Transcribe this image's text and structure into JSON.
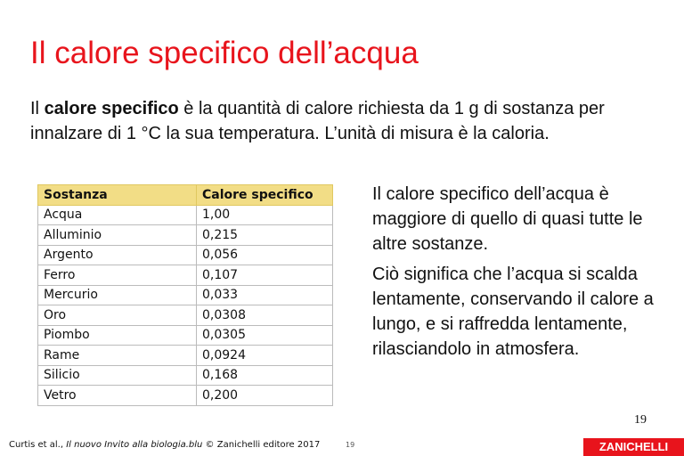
{
  "title": "Il calore specifico dell’acqua",
  "intro": {
    "before": "Il ",
    "bold": "calore specifico",
    "after": " è la quantità di calore richiesta da 1 g di sostanza per innalzare di 1 °C la sua temperatura. L’unità di misura è la caloria."
  },
  "table": {
    "header": [
      "Sostanza",
      "Calore specifico"
    ],
    "rows": [
      [
        "Acqua",
        "1,00"
      ],
      [
        "Alluminio",
        "0,215"
      ],
      [
        "Argento",
        "0,056"
      ],
      [
        "Ferro",
        "0,107"
      ],
      [
        "Mercurio",
        "0,033"
      ],
      [
        "Oro",
        "0,0308"
      ],
      [
        "Piombo",
        "0,0305"
      ],
      [
        "Rame",
        "0,0924"
      ],
      [
        "Silicio",
        "0,168"
      ],
      [
        "Vetro",
        "0,200"
      ]
    ]
  },
  "side": [
    "Il calore specifico dell’acqua è maggiore di quello di quasi tutte le altre sostanze.",
    "Ciò significa che l’acqua si scalda lentamente, conservando il calore a lungo, e si raffredda lentamente, rilasciandolo in atmosfera."
  ],
  "page_number": "19",
  "footer": {
    "authors": "Curtis et al., ",
    "book": "Il nuovo Invito alla biologia.blu",
    "publisher": " © Zanichelli editore 2017",
    "number": "19",
    "logo": "ZANICHELLI"
  }
}
